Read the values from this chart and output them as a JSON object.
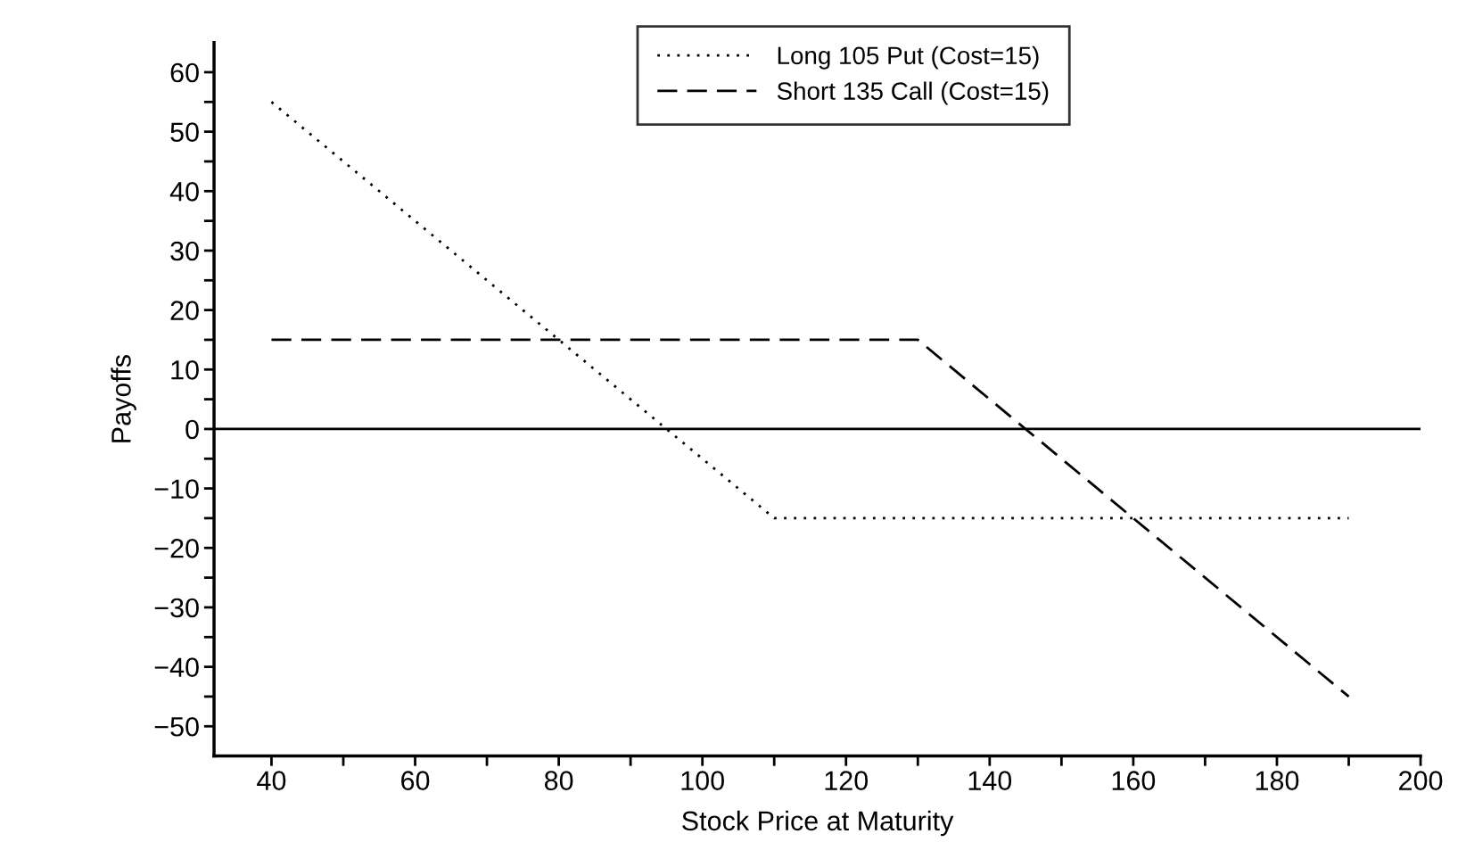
{
  "chart_data": {
    "type": "line",
    "xlabel": "Stock Price at Maturity",
    "ylabel": "Payoffs",
    "series": [
      {
        "name": "Long 105 Put (Cost=15)",
        "color": "#000000",
        "line_style": "dotted",
        "x": [
          40,
          110,
          190
        ],
        "values": [
          55,
          -15,
          -15
        ]
      },
      {
        "name": "Short 135 Call (Cost=15)",
        "color": "#000000",
        "line_style": "dashed",
        "x": [
          40,
          130,
          190
        ],
        "values": [
          15,
          15,
          -45
        ]
      }
    ],
    "xlim": [
      32,
      200
    ],
    "xticks": [
      40,
      {
        "value": 50,
        "label": null
      },
      60,
      {
        "value": 70,
        "label": null
      },
      80,
      {
        "value": 90,
        "label": null
      },
      100,
      {
        "value": 110,
        "label": null
      },
      120,
      {
        "value": 130,
        "label": null
      },
      140,
      {
        "value": 150,
        "label": null
      },
      160,
      {
        "value": 170,
        "label": null
      },
      180,
      {
        "value": 190,
        "label": null
      },
      200
    ],
    "ylim": [
      -55,
      65
    ],
    "yticks": [
      -50,
      {
        "value": -45,
        "label": null
      },
      -40,
      {
        "value": -35,
        "label": null
      },
      -30,
      {
        "value": -25,
        "label": null
      },
      -20,
      {
        "value": -15,
        "label": null
      },
      -10,
      {
        "value": -5,
        "label": null
      },
      0,
      {
        "value": 5,
        "label": null
      },
      10,
      {
        "value": 15,
        "label": null
      },
      20,
      {
        "value": 25,
        "label": null
      },
      30,
      {
        "value": 35,
        "label": null
      },
      40,
      {
        "value": 45,
        "label": null
      },
      50,
      {
        "value": 55,
        "label": null
      },
      60
    ],
    "ref_lines": [
      {
        "axis": "y",
        "value": 0,
        "color": "#000000",
        "line_style": "solid"
      }
    ],
    "grid": false,
    "legend": "top"
  }
}
